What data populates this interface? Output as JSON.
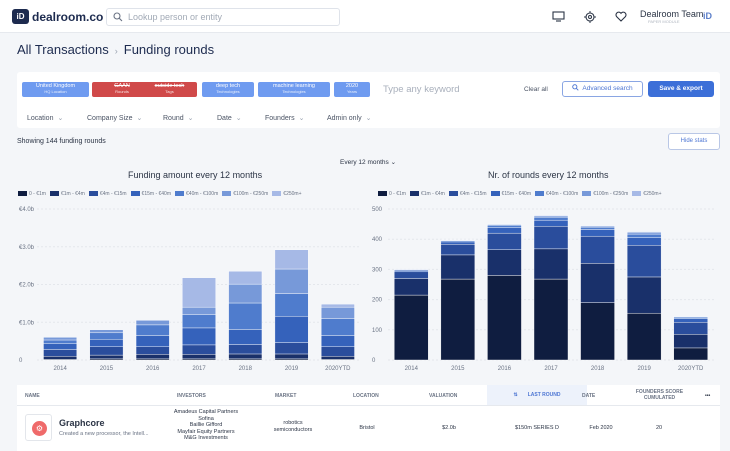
{
  "topbar": {
    "brand": "dealroom.co",
    "logo_letters": "iD",
    "search_placeholder": "Lookup person or entity",
    "team": "Dealroom Team",
    "team_sub": "PAPER MODULE",
    "avatar": "iD",
    "icons": [
      "desktop-icon",
      "crosshair-icon",
      "heart-icon"
    ]
  },
  "breadcrumb": {
    "root": "All Transactions",
    "current": "Funding rounds"
  },
  "filters": {
    "tags": [
      {
        "main": "United Kingdom",
        "sub": "HQ Location",
        "color": "#6f9bf0"
      },
      {
        "main": "GAAN",
        "sub": "Rounds",
        "color": "#d04949"
      },
      {
        "main": "outside tech",
        "sub": "Tags",
        "color": "#d04949"
      },
      {
        "main": "deep tech",
        "sub": "Technologies",
        "color": "#6f9bf0"
      },
      {
        "main": "machine learning",
        "sub": "Technologies",
        "color": "#6f9bf0"
      },
      {
        "main": "2020",
        "sub": "Years",
        "color": "#6f9bf0"
      }
    ],
    "keyword_placeholder": "Type any keyword",
    "clear_all": "Clear all",
    "advanced": "Advanced search",
    "save": "Save & export",
    "dropdowns": [
      "Location",
      "Company Size",
      "Round",
      "Date",
      "Founders",
      "Admin only"
    ]
  },
  "stats": {
    "showing": "Showing 144 funding rounds",
    "hide": "Hide stats",
    "period": "Every 12 months"
  },
  "legend": [
    "0 - €1m",
    "€1m - €4m",
    "€4m - €15m",
    "€15m - €40m",
    "€40m - €100m",
    "€100m - €250m",
    "€250m+"
  ],
  "colors": [
    "#0f1d40",
    "#19306a",
    "#2a4d9c",
    "#3562bb",
    "#4f7ccd",
    "#7799d9",
    "#a6b9e6"
  ],
  "chart_data": [
    {
      "type": "bar",
      "stacked": true,
      "title": "Funding amount every 12 months",
      "categories": [
        "2014",
        "2015",
        "2016",
        "2017",
        "2018",
        "2019",
        "2020YTD"
      ],
      "y_ticks": [
        "€4.0b",
        "€3.0b",
        "€2.0b",
        "€1.0b",
        "0"
      ],
      "ylim": [
        0,
        4.0
      ],
      "series": [
        {
          "name": "0 - €1m",
          "values": [
            0.02,
            0.03,
            0.03,
            0.03,
            0.03,
            0.03,
            0.02
          ]
        },
        {
          "name": "€1m - €4m",
          "values": [
            0.08,
            0.1,
            0.12,
            0.12,
            0.13,
            0.13,
            0.08
          ]
        },
        {
          "name": "€4m - €15m",
          "values": [
            0.18,
            0.22,
            0.2,
            0.25,
            0.25,
            0.3,
            0.25
          ]
        },
        {
          "name": "€15m - €40m",
          "values": [
            0.15,
            0.2,
            0.3,
            0.45,
            0.4,
            0.7,
            0.3
          ]
        },
        {
          "name": "€40m - €100m",
          "values": [
            0.1,
            0.17,
            0.28,
            0.35,
            0.7,
            0.6,
            0.45
          ]
        },
        {
          "name": "€100m - €250m",
          "values": [
            0.07,
            0.08,
            0.12,
            0.2,
            0.5,
            0.65,
            0.3
          ]
        },
        {
          "name": "€250m+",
          "values": [
            0,
            0,
            0,
            0.78,
            0.34,
            0.51,
            0.08
          ]
        }
      ]
    },
    {
      "type": "bar",
      "stacked": true,
      "title": "Nr. of rounds every 12 months",
      "categories": [
        "2014",
        "2015",
        "2016",
        "2017",
        "2018",
        "2019",
        "2020YTD"
      ],
      "y_ticks": [
        "500",
        "400",
        "300",
        "200",
        "100",
        "0"
      ],
      "ylim": [
        0,
        500
      ],
      "series": [
        {
          "name": "0 - €1m",
          "values": [
            215,
            268,
            280,
            268,
            190,
            155,
            40
          ]
        },
        {
          "name": "€1m - €4m",
          "values": [
            55,
            80,
            85,
            100,
            130,
            120,
            45
          ]
        },
        {
          "name": "€4m - €15m",
          "values": [
            22,
            35,
            55,
            75,
            90,
            105,
            40
          ]
        },
        {
          "name": "€15m - €40m",
          "values": [
            5,
            8,
            18,
            20,
            22,
            25,
            12
          ]
        },
        {
          "name": "€40m - €100m",
          "values": [
            2,
            4,
            8,
            10,
            8,
            12,
            5
          ]
        },
        {
          "name": "€100m - €250m",
          "values": [
            1,
            2,
            3,
            4,
            4,
            6,
            2
          ]
        },
        {
          "name": "€250m+",
          "values": [
            0,
            1,
            1,
            2,
            1,
            2,
            1
          ]
        }
      ]
    }
  ],
  "table": {
    "columns": [
      "NAME",
      "INVESTORS",
      "MARKET",
      "LOCATION",
      "VALUATION",
      "LAST ROUND",
      "DATE",
      "FOUNDERS SCORE CUMULATED"
    ],
    "more": "•••",
    "rows": [
      {
        "name": "Graphcore",
        "desc": "Created a new processor, the Intell...",
        "investors": [
          "Amadeus Capital Partners",
          "Sofina",
          "Baillie Gifford",
          "Mayfair Equity Partners",
          "M&G Investments"
        ],
        "market": [
          "robotics",
          "semiconductors"
        ],
        "location": "Bristol",
        "valuation": "$2.0b",
        "last_round": "$150m SERIES D",
        "date": "Feb 2020",
        "score": "20"
      }
    ]
  }
}
